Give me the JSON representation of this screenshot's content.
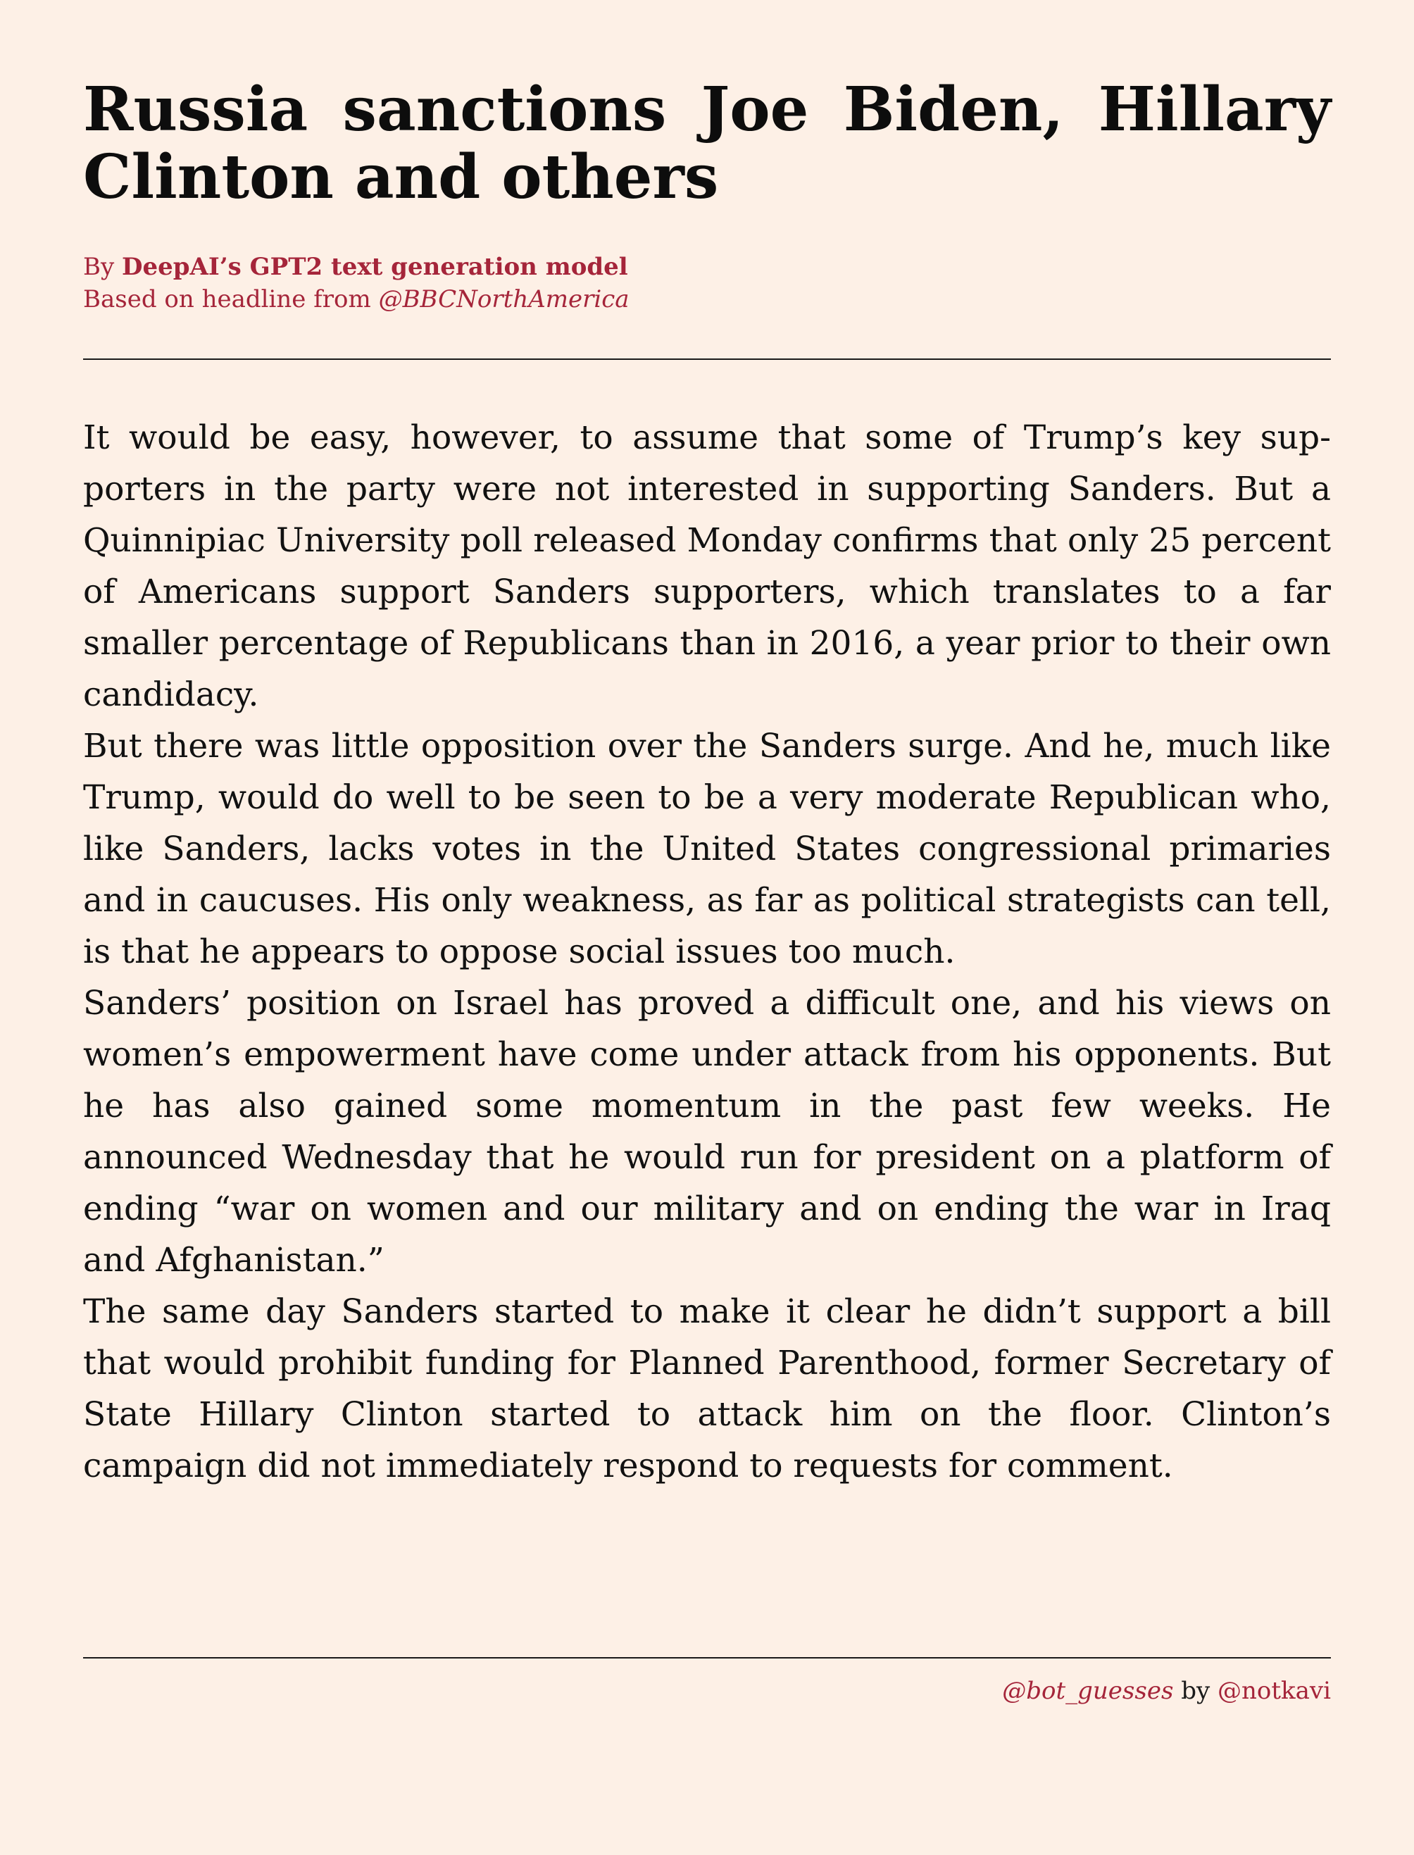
{
  "article": {
    "headline": "Russia sanctions Joe Biden, Hillary Clinton and others",
    "byline": {
      "prefix": "By ",
      "author": "DeepAI’s GPT2 text generation model",
      "based_on": "Based on headline from ",
      "source_handle": "@BBCNorthAmerica"
    },
    "paragraphs": [
      "It would be easy, however, to assume that some of Trump’s key sup­porters in the party were not interested in supporting Sanders. But a Quinnipiac University poll released Monday confirms that only 25 percent of Americans support Sanders supporters, which translates to a far smaller percentage of Republicans than in 2016, a year prior to their own candidacy.",
      "But there was little opposition over the Sanders surge. And he, much like Trump, would do well to be seen to be a very moderate Republi­can who, like Sanders, lacks votes in the United States congressional primaries and in caucuses. His only weakness, as far as political strategists can tell, is that he appears to oppose social issues too much.",
      "Sanders’ position on Israel has proved a difficult one, and his views on women’s empowerment have come under attack from his op­ponents. But he has also gained some momentum in the past few weeks. He announced Wednesday that he would run for president on a platform of ending “war on women and our military and on ending the war in Iraq and Afghanistan.”",
      "The same day Sanders started to make it clear he didn’t support a bill that would prohibit funding for Planned Parenthood, former Secretary of State Hillary Clinton started to attack him on the floor. Clinton’s campaign did not immediately respond to requests for com­ment."
    ]
  },
  "footer": {
    "bot_handle": "@bot_guesses",
    "by": " by ",
    "creator_handle": "@notkavi"
  },
  "colors": {
    "background": "#fdf0e6",
    "accent": "#a5253a",
    "text": "#111111"
  }
}
